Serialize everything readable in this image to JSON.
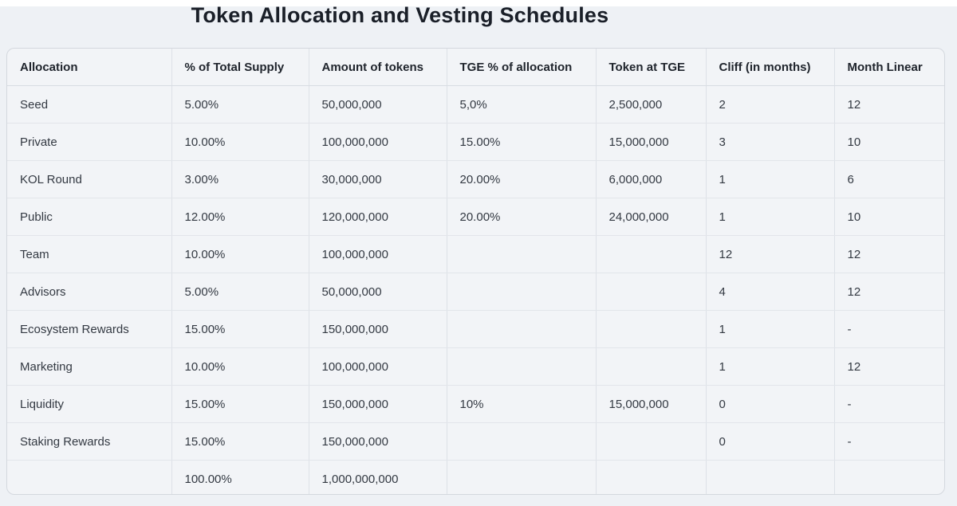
{
  "title": "Token Allocation and Vesting Schedules",
  "colors": {
    "page_background": "#eef1f5",
    "table_background": "#f2f4f7",
    "table_border": "#d4d8de",
    "grid_line": "#dde1e7",
    "header_text": "#20252d",
    "cell_text": "#333942",
    "title_text": "#1a1f28"
  },
  "table": {
    "columns": [
      "Allocation",
      "% of Total Supply",
      "Amount of tokens",
      "TGE % of allocation",
      "Token at TGE",
      "Cliff (in months)",
      "Month Linear"
    ],
    "rows": [
      [
        "Seed",
        "5.00%",
        "50,000,000",
        "5,0%",
        "2,500,000",
        "2",
        "12"
      ],
      [
        "Private",
        "10.00%",
        "100,000,000",
        "15.00%",
        "15,000,000",
        "3",
        "10"
      ],
      [
        "KOL Round",
        "3.00%",
        "30,000,000",
        "20.00%",
        "6,000,000",
        "1",
        "6"
      ],
      [
        "Public",
        "12.00%",
        "120,000,000",
        "20.00%",
        "24,000,000",
        "1",
        "10"
      ],
      [
        "Team",
        "10.00%",
        "100,000,000",
        "",
        "",
        "12",
        "12"
      ],
      [
        "Advisors",
        "5.00%",
        "50,000,000",
        "",
        "",
        "4",
        "12"
      ],
      [
        "Ecosystem Rewards",
        "15.00%",
        "150,000,000",
        "",
        "",
        "1",
        "-"
      ],
      [
        "Marketing",
        "10.00%",
        "100,000,000",
        "",
        "",
        "1",
        "12"
      ],
      [
        "Liquidity",
        "15.00%",
        "150,000,000",
        "10%",
        "15,000,000",
        "0",
        "-"
      ],
      [
        "Staking Rewards",
        "15.00%",
        "150,000,000",
        "",
        "",
        "0",
        "-"
      ],
      [
        "",
        "100.00%",
        "1,000,000,000",
        "",
        "",
        "",
        ""
      ]
    ]
  }
}
